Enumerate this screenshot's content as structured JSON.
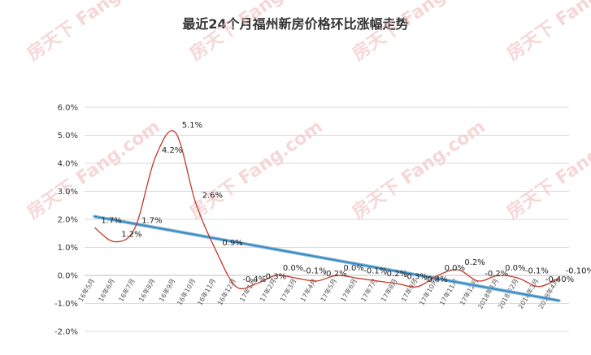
{
  "chart_data": {
    "type": "line",
    "title": "最近24个月福州新房价格环比涨幅走势",
    "categories": [
      "16年5月",
      "16年6月",
      "16年7月",
      "16年8月",
      "16年9月",
      "16年10月",
      "16年11月",
      "16年12月",
      "17年1月",
      "17年2月",
      "17年3月",
      "17年4月",
      "17年5月",
      "17年6月",
      "17年7月",
      "17年8月",
      "17年9月",
      "17年10月",
      "17年11月",
      "17年12月",
      "2018年1月",
      "2018年2月",
      "2018年3月",
      "2018年4月"
    ],
    "series": [
      {
        "values": [
          1.7,
          1.2,
          1.7,
          4.2,
          5.1,
          2.6,
          0.9,
          -0.4,
          -0.3,
          0.0,
          -0.1,
          -0.2,
          0.0,
          -0.1,
          -0.2,
          -0.3,
          -0.4,
          0.0,
          0.2,
          -0.2,
          0.0,
          -0.1,
          -0.4,
          -0.1
        ],
        "labels": [
          "1.7%",
          "1.2%",
          "1.7%",
          "4.2%",
          "5.1%",
          "2.6%",
          "0.9%",
          "-0.4%",
          "-0.3%",
          "0.0%",
          "-0.1%",
          "-0.2%",
          "0.0%",
          "-0.1%",
          "-0.2%",
          "-0.3%",
          "-0.4%",
          "0.0%",
          "0.2%",
          "-0.2%",
          "0.0%",
          "-0.1%",
          "-0.40%",
          "-0.10%"
        ],
        "color": "#c0392b"
      }
    ],
    "trendline": {
      "start": 2.1,
      "end": -0.9,
      "color": "#2e86c1"
    },
    "yticks": [
      "6.0%",
      "5.0%",
      "4.0%",
      "3.0%",
      "2.0%",
      "1.0%",
      "0.0%",
      "-1.0%",
      "-2.0%"
    ],
    "ylim": [
      -2.0,
      6.0
    ],
    "grid": "horizontal",
    "legend": "none"
  },
  "watermark": "房天下 Fang.com"
}
